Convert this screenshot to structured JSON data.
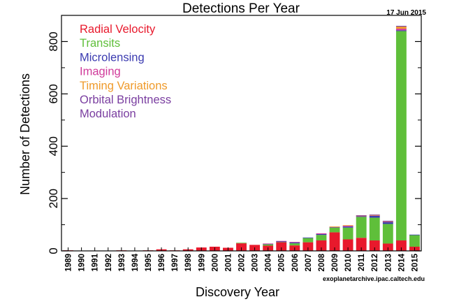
{
  "chart_data": {
    "type": "bar",
    "stacked": true,
    "title": "Detections Per Year",
    "date": "17 Jun 2015",
    "xlabel": "Discovery Year",
    "ylabel": "Number of Detections",
    "credit": "exoplanetarchive.ipac.caltech.edu",
    "ylim": [
      0,
      900
    ],
    "yticks": [
      0,
      200,
      400,
      600,
      800
    ],
    "grid": false,
    "legend_position": "top-left",
    "categories": [
      "1989",
      "1990",
      "1991",
      "1992",
      "1993",
      "1994",
      "1995",
      "1996",
      "1997",
      "1998",
      "1999",
      "2000",
      "2001",
      "2002",
      "2003",
      "2004",
      "2005",
      "2006",
      "2007",
      "2008",
      "2009",
      "2010",
      "2011",
      "2012",
      "2013",
      "2014",
      "2015"
    ],
    "series": [
      {
        "name": "Radial Velocity",
        "color": "#e8192c",
        "values": [
          1,
          0,
          0,
          0,
          1,
          0,
          1,
          6,
          1,
          6,
          13,
          16,
          12,
          29,
          23,
          20,
          33,
          21,
          33,
          40,
          71,
          44,
          50,
          40,
          28,
          40,
          16
        ]
      },
      {
        "name": "Transits",
        "color": "#5fbf3a",
        "values": [
          0,
          0,
          0,
          0,
          0,
          0,
          0,
          0,
          0,
          0,
          0,
          0,
          0,
          1,
          0,
          5,
          1,
          8,
          16,
          21,
          18,
          45,
          80,
          87,
          75,
          800,
          44
        ]
      },
      {
        "name": "Microlensing",
        "color": "#3a3ab0",
        "values": [
          0,
          0,
          0,
          0,
          0,
          0,
          0,
          0,
          0,
          0,
          0,
          0,
          0,
          0,
          0,
          1,
          2,
          3,
          1,
          3,
          1,
          4,
          2,
          7,
          7,
          3,
          2
        ]
      },
      {
        "name": "Imaging",
        "color": "#d03a9a",
        "values": [
          0,
          0,
          0,
          0,
          0,
          0,
          0,
          0,
          0,
          0,
          0,
          0,
          0,
          0,
          0,
          2,
          1,
          1,
          0,
          3,
          1,
          3,
          1,
          1,
          1,
          6,
          0
        ]
      },
      {
        "name": "Timing Variations",
        "color": "#ef9a2a",
        "values": [
          0,
          0,
          0,
          0,
          0,
          0,
          0,
          0,
          0,
          0,
          0,
          0,
          0,
          0,
          0,
          0,
          0,
          0,
          0,
          0,
          1,
          1,
          1,
          2,
          1,
          8,
          0
        ]
      },
      {
        "name": "Orbital Brightness Modulation",
        "color": "#7a3ea0",
        "values": [
          0,
          0,
          0,
          0,
          0,
          0,
          0,
          0,
          0,
          0,
          0,
          0,
          0,
          0,
          0,
          0,
          0,
          0,
          0,
          0,
          0,
          0,
          2,
          2,
          3,
          3,
          0
        ]
      }
    ],
    "legend": [
      {
        "label": "Radial Velocity",
        "color": "#e8192c"
      },
      {
        "label": "Transits",
        "color": "#5fbf3a"
      },
      {
        "label": "Microlensing",
        "color": "#3a3ab0"
      },
      {
        "label": "Imaging",
        "color": "#d03a9a"
      },
      {
        "label": "Timing Variations",
        "color": "#ef9a2a"
      },
      {
        "label": "Orbital Brightness",
        "color": "#7a3ea0"
      },
      {
        "label": "Modulation",
        "color": "#7a3ea0"
      }
    ]
  }
}
